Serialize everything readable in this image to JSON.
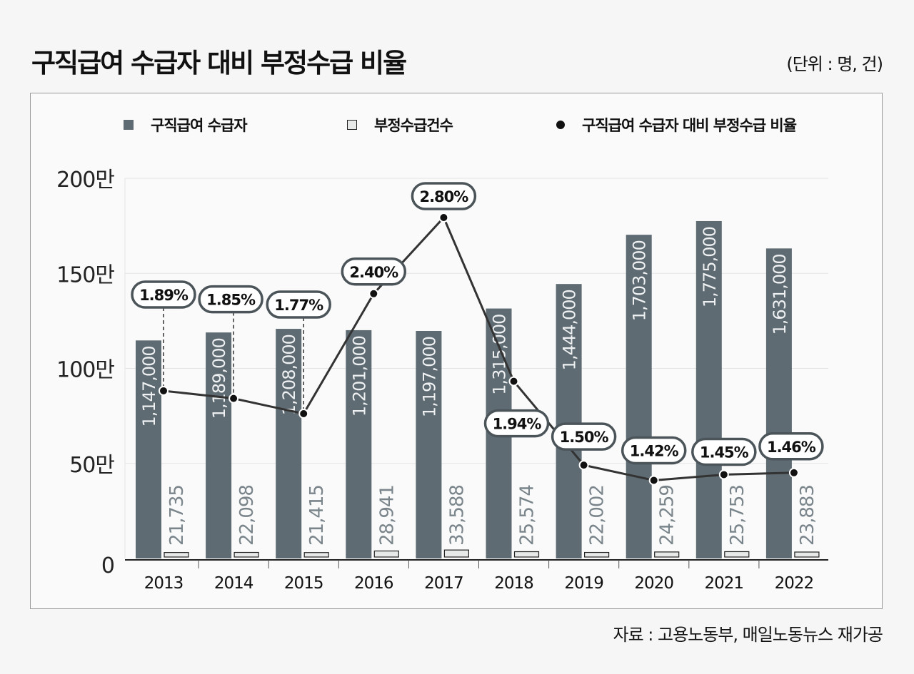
{
  "title": "구직급여 수급자 대비 부정수급 비율",
  "unit": "(단위 : 명, 건)",
  "source": "자료 : 고용노동부, 매일노동뉴스 재가공",
  "legend": [
    {
      "label": "구직급여 수급자",
      "marker": "square",
      "color": "#5e6b73"
    },
    {
      "label": "부정수급건수",
      "marker": "square-outline",
      "color": "#e6e9e8"
    },
    {
      "label": "구직급여 수급자 대비 부정수급 비율",
      "marker": "dot",
      "color": "#111111"
    }
  ],
  "chart_data": {
    "type": "bar",
    "title": "구직급여 수급자 대비 부정수급 비율",
    "categories": [
      "2013",
      "2014",
      "2015",
      "2016",
      "2017",
      "2018",
      "2019",
      "2020",
      "2021",
      "2022"
    ],
    "y_ticks": [
      "0",
      "50만",
      "100만",
      "150만",
      "200만"
    ],
    "ylim": [
      0,
      2000000
    ],
    "grid": true,
    "legend_position": "top",
    "series": [
      {
        "name": "구직급여 수급자",
        "type": "bar",
        "color": "#5e6b73",
        "values": [
          1147000,
          1189000,
          1208000,
          1201000,
          1197000,
          1315000,
          1444000,
          1703000,
          1775000,
          1631000
        ],
        "labels": [
          "1,147,000",
          "1,189,000",
          "1,208,000",
          "1,201,000",
          "1,197,000",
          "1,315,000",
          "1,444,000",
          "1,703,000",
          "1,775,000",
          "1,631,000"
        ]
      },
      {
        "name": "부정수급건수",
        "type": "bar",
        "color": "#e6e9e8",
        "values": [
          21735,
          22098,
          21415,
          28941,
          33588,
          25574,
          22002,
          24259,
          25753,
          23883
        ],
        "labels": [
          "21,735",
          "22,098",
          "21,415",
          "28,941",
          "33,588",
          "25,574",
          "22,002",
          "24,259",
          "25,753",
          "23,883"
        ]
      },
      {
        "name": "구직급여 수급자 대비 부정수급 비율",
        "type": "line",
        "color": "#333333",
        "unit": "%",
        "values": [
          1.89,
          1.85,
          1.77,
          2.4,
          2.8,
          1.94,
          1.5,
          1.42,
          1.45,
          1.46
        ],
        "labels": [
          "1.89%",
          "1.85%",
          "1.77%",
          "2.40%",
          "2.80%",
          "1.94%",
          "1.50%",
          "1.42%",
          "1.45%",
          "1.46%"
        ]
      }
    ]
  }
}
